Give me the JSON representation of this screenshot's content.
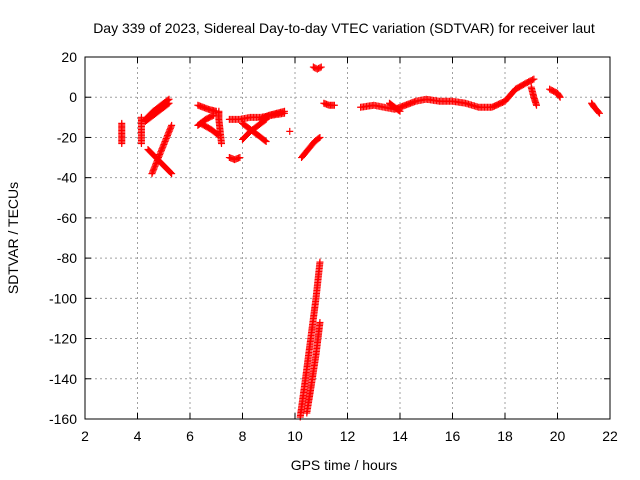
{
  "chart_data": {
    "type": "scatter",
    "title": "Day 339 of 2023, Sidereal Day-to-day VTEC variation (SDTVAR) for receiver laut",
    "xlabel": "GPS time / hours",
    "ylabel": "SDTVAR / TECUs",
    "xlim": [
      2,
      22
    ],
    "ylim": [
      -160,
      20
    ],
    "xticks": [
      2,
      4,
      6,
      8,
      10,
      12,
      14,
      16,
      18,
      20,
      22
    ],
    "yticks": [
      20,
      0,
      -20,
      -40,
      -60,
      -80,
      -100,
      -120,
      -140,
      -160
    ],
    "grid": true,
    "marker": "plus",
    "color": "#ff0000",
    "segments": [
      {
        "points": [
          [
            3.4,
            -13
          ],
          [
            3.4,
            -18
          ],
          [
            3.4,
            -23
          ]
        ]
      },
      {
        "points": [
          [
            4.15,
            -10
          ],
          [
            4.15,
            -13
          ],
          [
            4.15,
            -23
          ]
        ]
      },
      {
        "points": [
          [
            4.3,
            -11
          ],
          [
            4.6,
            -7
          ],
          [
            4.9,
            -4
          ],
          [
            5.2,
            -1
          ]
        ]
      },
      {
        "points": [
          [
            4.3,
            -12
          ],
          [
            4.6,
            -9
          ],
          [
            4.9,
            -6
          ],
          [
            5.2,
            -3
          ]
        ]
      },
      {
        "points": [
          [
            4.4,
            -26
          ],
          [
            4.7,
            -30
          ],
          [
            5.0,
            -34
          ],
          [
            5.3,
            -38
          ]
        ]
      },
      {
        "points": [
          [
            4.55,
            -38
          ],
          [
            4.8,
            -30
          ],
          [
            5.05,
            -22
          ],
          [
            5.3,
            -14
          ]
        ]
      },
      {
        "points": [
          [
            6.3,
            -4
          ],
          [
            6.7,
            -6
          ],
          [
            7.0,
            -7
          ]
        ]
      },
      {
        "points": [
          [
            6.3,
            -14
          ],
          [
            6.6,
            -11
          ],
          [
            6.9,
            -9
          ]
        ]
      },
      {
        "points": [
          [
            6.4,
            -13
          ],
          [
            6.8,
            -16
          ],
          [
            7.1,
            -19
          ]
        ]
      },
      {
        "points": [
          [
            7.1,
            -7
          ],
          [
            7.1,
            -11
          ],
          [
            7.2,
            -23
          ]
        ]
      },
      {
        "points": [
          [
            7.5,
            -30
          ],
          [
            7.7,
            -31
          ],
          [
            7.9,
            -30
          ]
        ]
      },
      {
        "points": [
          [
            7.5,
            -11
          ],
          [
            7.9,
            -11
          ],
          [
            8.3,
            -10
          ],
          [
            8.7,
            -10
          ],
          [
            9.1,
            -9
          ],
          [
            9.6,
            -8
          ]
        ]
      },
      {
        "points": [
          [
            8.0,
            -13
          ],
          [
            8.3,
            -16
          ],
          [
            8.6,
            -19
          ],
          [
            8.9,
            -22
          ]
        ]
      },
      {
        "points": [
          [
            8.0,
            -21
          ],
          [
            8.3,
            -17
          ],
          [
            8.6,
            -14
          ],
          [
            8.9,
            -11
          ]
        ]
      },
      {
        "points": [
          [
            8.7,
            -11
          ],
          [
            9.0,
            -9
          ],
          [
            9.3,
            -8
          ],
          [
            9.6,
            -7
          ]
        ]
      },
      {
        "points": [
          [
            9.8,
            -17
          ]
        ]
      },
      {
        "points": [
          [
            10.7,
            15
          ],
          [
            10.85,
            14
          ],
          [
            11.0,
            15
          ]
        ]
      },
      {
        "points": [
          [
            10.25,
            -30
          ],
          [
            10.5,
            -26
          ],
          [
            10.75,
            -22
          ],
          [
            10.95,
            -20
          ]
        ]
      },
      {
        "points": [
          [
            10.2,
            -159
          ],
          [
            10.4,
            -140
          ],
          [
            10.6,
            -120
          ],
          [
            10.8,
            -100
          ],
          [
            10.95,
            -82
          ]
        ]
      },
      {
        "points": [
          [
            10.45,
            -157
          ],
          [
            10.6,
            -145
          ],
          [
            10.8,
            -128
          ],
          [
            10.95,
            -112
          ]
        ]
      },
      {
        "points": [
          [
            11.1,
            -3
          ],
          [
            11.3,
            -4
          ],
          [
            11.5,
            -4
          ]
        ]
      },
      {
        "points": [
          [
            12.5,
            -5
          ],
          [
            13.0,
            -4
          ],
          [
            13.4,
            -5
          ],
          [
            13.8,
            -6
          ],
          [
            14.2,
            -4
          ],
          [
            14.6,
            -2
          ],
          [
            15.0,
            -1
          ],
          [
            15.5,
            -2
          ],
          [
            16.0,
            -2
          ],
          [
            16.5,
            -3
          ],
          [
            17.0,
            -5
          ],
          [
            17.5,
            -5
          ],
          [
            18.0,
            -2
          ],
          [
            18.4,
            4
          ],
          [
            18.8,
            7
          ],
          [
            19.1,
            9
          ]
        ]
      },
      {
        "points": [
          [
            13.6,
            -3
          ],
          [
            13.8,
            -5
          ],
          [
            14.0,
            -7
          ]
        ]
      },
      {
        "points": [
          [
            19.0,
            5
          ],
          [
            19.1,
            0
          ],
          [
            19.2,
            -4
          ]
        ]
      },
      {
        "points": [
          [
            19.7,
            4
          ],
          [
            20.0,
            2
          ],
          [
            20.1,
            0
          ]
        ]
      },
      {
        "points": [
          [
            21.3,
            -3
          ],
          [
            21.4,
            -5
          ],
          [
            21.6,
            -8
          ]
        ]
      }
    ]
  }
}
